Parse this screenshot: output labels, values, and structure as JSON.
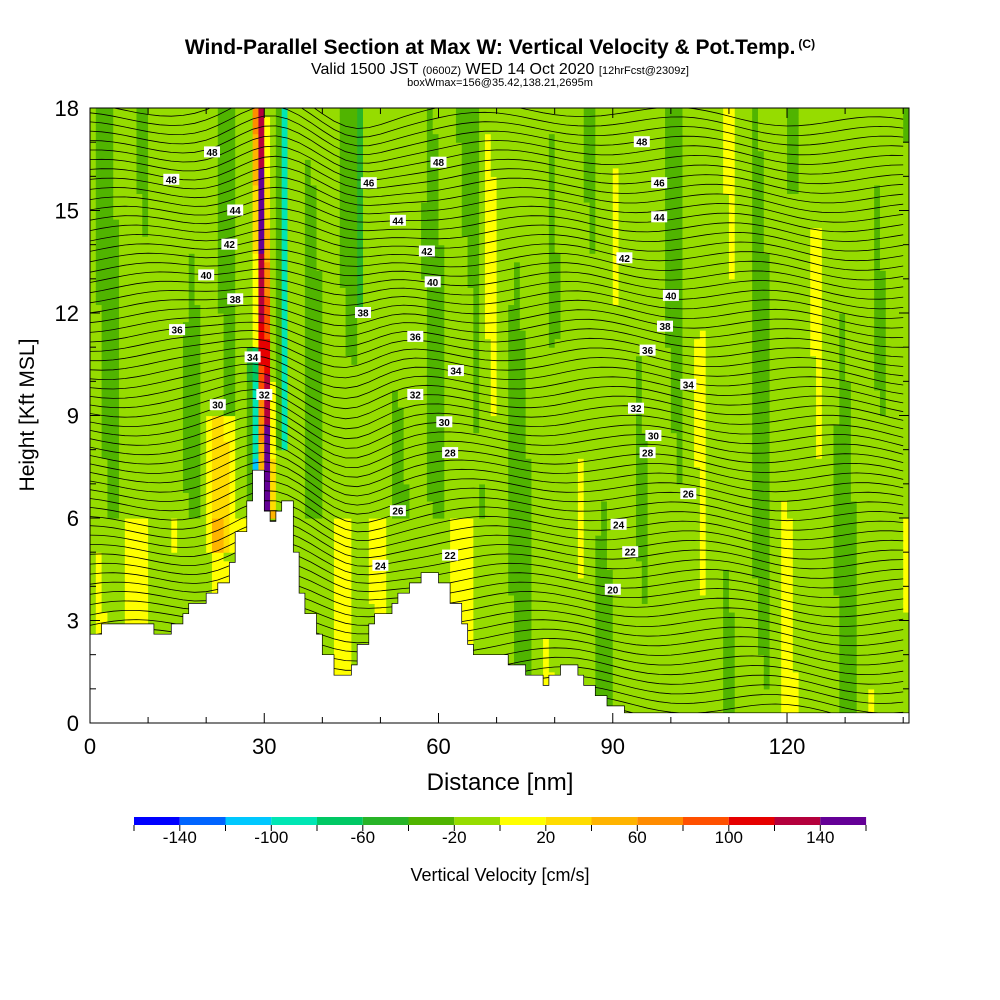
{
  "chart_data": {
    "type": "heatmap",
    "title": "Wind-Parallel Section at Max W: Vertical Velocity & Pot.Temp.",
    "title_mark": "(C)",
    "subtitle": {
      "valid": "Valid 1500 JST",
      "utc": "(0600Z)",
      "date": "WED 14 Oct 2020",
      "fcst": "[12hrFcst@2309z]"
    },
    "subtitle2": "boxWmax=156@35.42,138.21,2695m",
    "xlabel": "Distance [nm]",
    "ylabel": "Height [Kft MSL]",
    "xlim": [
      0,
      141
    ],
    "ylim": [
      0,
      18
    ],
    "x_ticks": [
      0,
      30,
      60,
      90,
      120
    ],
    "y_ticks": [
      0,
      3,
      6,
      9,
      12,
      15,
      18
    ],
    "colorbar": {
      "label": "Vertical Velocity [cm/s]",
      "tick_labels": [
        -140,
        -100,
        -60,
        -20,
        20,
        60,
        100,
        140
      ],
      "bins": [
        -160,
        -140,
        -120,
        -100,
        -80,
        -60,
        -40,
        -20,
        0,
        20,
        40,
        60,
        80,
        100,
        120,
        140,
        160
      ],
      "colors": [
        "#0000ff",
        "#0064ff",
        "#00c8ff",
        "#00e6b4",
        "#00c864",
        "#28b428",
        "#50b400",
        "#96dc00",
        "#ffff00",
        "#ffdc00",
        "#ffb400",
        "#ff8c00",
        "#ff5000",
        "#e60000",
        "#b4003c",
        "#640096"
      ]
    },
    "terrain": [
      [
        0,
        2.6
      ],
      [
        2,
        2.6
      ],
      [
        2,
        2.9
      ],
      [
        11,
        2.9
      ],
      [
        11,
        2.6
      ],
      [
        14,
        2.6
      ],
      [
        14,
        2.9
      ],
      [
        16,
        2.9
      ],
      [
        16,
        3.2
      ],
      [
        17,
        3.2
      ],
      [
        17,
        3.5
      ],
      [
        20,
        3.5
      ],
      [
        20,
        3.8
      ],
      [
        22,
        3.8
      ],
      [
        22,
        4.1
      ],
      [
        24,
        4.1
      ],
      [
        24,
        4.7
      ],
      [
        25,
        4.7
      ],
      [
        25,
        5.6
      ],
      [
        27,
        5.6
      ],
      [
        27,
        6.5
      ],
      [
        28,
        6.5
      ],
      [
        28,
        7.4
      ],
      [
        30,
        7.4
      ],
      [
        30,
        6.2
      ],
      [
        31,
        6.2
      ],
      [
        31,
        5.9
      ],
      [
        32,
        5.9
      ],
      [
        32,
        6.2
      ],
      [
        33,
        6.2
      ],
      [
        33,
        6.5
      ],
      [
        35,
        6.5
      ],
      [
        35,
        5.0
      ],
      [
        36,
        5.0
      ],
      [
        36,
        3.8
      ],
      [
        37,
        3.8
      ],
      [
        37,
        3.2
      ],
      [
        39,
        3.2
      ],
      [
        39,
        2.6
      ],
      [
        40,
        2.6
      ],
      [
        40,
        2.0
      ],
      [
        42,
        2.0
      ],
      [
        42,
        1.4
      ],
      [
        45,
        1.4
      ],
      [
        45,
        1.7
      ],
      [
        46,
        1.7
      ],
      [
        46,
        2.3
      ],
      [
        48,
        2.3
      ],
      [
        48,
        2.9
      ],
      [
        49,
        2.9
      ],
      [
        49,
        3.2
      ],
      [
        52,
        3.2
      ],
      [
        52,
        3.5
      ],
      [
        53,
        3.5
      ],
      [
        53,
        3.8
      ],
      [
        55,
        3.8
      ],
      [
        55,
        4.1
      ],
      [
        57,
        4.1
      ],
      [
        57,
        4.4
      ],
      [
        60,
        4.4
      ],
      [
        60,
        4.1
      ],
      [
        62,
        4.1
      ],
      [
        62,
        3.5
      ],
      [
        64,
        3.5
      ],
      [
        64,
        2.9
      ],
      [
        65,
        2.9
      ],
      [
        65,
        2.3
      ],
      [
        66,
        2.3
      ],
      [
        66,
        2.0
      ],
      [
        72,
        2.0
      ],
      [
        72,
        1.7
      ],
      [
        75,
        1.7
      ],
      [
        75,
        1.4
      ],
      [
        78,
        1.4
      ],
      [
        78,
        1.1
      ],
      [
        79,
        1.1
      ],
      [
        79,
        1.4
      ],
      [
        81,
        1.4
      ],
      [
        81,
        1.7
      ],
      [
        84,
        1.7
      ],
      [
        84,
        1.4
      ],
      [
        85,
        1.4
      ],
      [
        85,
        1.1
      ],
      [
        87,
        1.1
      ],
      [
        87,
        0.8
      ],
      [
        89,
        0.8
      ],
      [
        89,
        0.5
      ],
      [
        92,
        0.5
      ],
      [
        92,
        0.3
      ],
      [
        141,
        0.3
      ]
    ],
    "theta_labels": [
      {
        "v": "48",
        "x": 21,
        "y": 16.7
      },
      {
        "v": "48",
        "x": 14,
        "y": 15.9
      },
      {
        "v": "46",
        "x": 48,
        "y": 15.8
      },
      {
        "v": "48",
        "x": 60,
        "y": 16.4
      },
      {
        "v": "48",
        "x": 95,
        "y": 17.0
      },
      {
        "v": "46",
        "x": 98,
        "y": 15.8
      },
      {
        "v": "44",
        "x": 25,
        "y": 15.0
      },
      {
        "v": "44",
        "x": 53,
        "y": 14.7
      },
      {
        "v": "44",
        "x": 98,
        "y": 14.8
      },
      {
        "v": "42",
        "x": 24,
        "y": 14.0
      },
      {
        "v": "42",
        "x": 58,
        "y": 13.8
      },
      {
        "v": "42",
        "x": 92,
        "y": 13.6
      },
      {
        "v": "40",
        "x": 20,
        "y": 13.1
      },
      {
        "v": "40",
        "x": 59,
        "y": 12.9
      },
      {
        "v": "40",
        "x": 100,
        "y": 12.5
      },
      {
        "v": "38",
        "x": 25,
        "y": 12.4
      },
      {
        "v": "38",
        "x": 47,
        "y": 12.0
      },
      {
        "v": "38",
        "x": 99,
        "y": 11.6
      },
      {
        "v": "36",
        "x": 15,
        "y": 11.5
      },
      {
        "v": "36",
        "x": 56,
        "y": 11.3
      },
      {
        "v": "36",
        "x": 96,
        "y": 10.9
      },
      {
        "v": "34",
        "x": 28,
        "y": 10.7
      },
      {
        "v": "34",
        "x": 63,
        "y": 10.3
      },
      {
        "v": "34",
        "x": 103,
        "y": 9.9
      },
      {
        "v": "32",
        "x": 30,
        "y": 9.6
      },
      {
        "v": "32",
        "x": 56,
        "y": 9.6
      },
      {
        "v": "32",
        "x": 94,
        "y": 9.2
      },
      {
        "v": "30",
        "x": 22,
        "y": 9.3
      },
      {
        "v": "30",
        "x": 61,
        "y": 8.8
      },
      {
        "v": "30",
        "x": 97,
        "y": 8.4
      },
      {
        "v": "28",
        "x": 62,
        "y": 7.9
      },
      {
        "v": "28",
        "x": 96,
        "y": 7.9
      },
      {
        "v": "26",
        "x": 53,
        "y": 6.2
      },
      {
        "v": "26",
        "x": 103,
        "y": 6.7
      },
      {
        "v": "24",
        "x": 50,
        "y": 4.6
      },
      {
        "v": "24",
        "x": 91,
        "y": 5.8
      },
      {
        "v": "22",
        "x": 62,
        "y": 4.9
      },
      {
        "v": "22",
        "x": 93,
        "y": 5.0
      },
      {
        "v": "20",
        "x": 90,
        "y": 3.9
      }
    ]
  }
}
